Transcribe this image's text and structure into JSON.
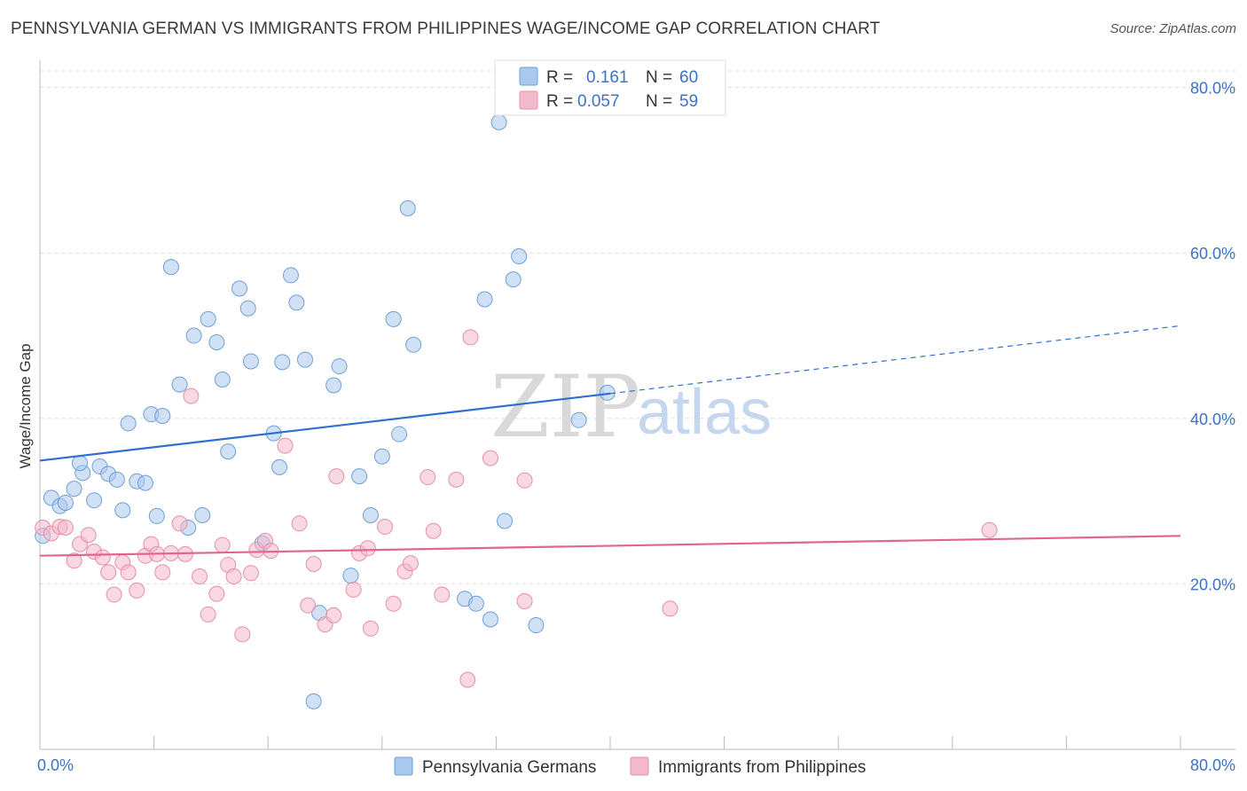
{
  "header": {
    "title": "PENNSYLVANIA GERMAN VS IMMIGRANTS FROM PHILIPPINES WAGE/INCOME GAP CORRELATION CHART",
    "source": "Source: ZipAtlas.com"
  },
  "watermark": {
    "zip": "ZIP",
    "atlas": "atlas"
  },
  "legend_top": [
    {
      "r_label": "R =",
      "r_value": "0.161",
      "n_label": "N =",
      "n_value": "60",
      "color": "#a9c8ee"
    },
    {
      "r_label": "R =",
      "r_value": "0.057",
      "n_label": "N =",
      "n_value": "59",
      "color": "#f4b8cb"
    }
  ],
  "chart_data": {
    "type": "scatter",
    "title": "PENNSYLVANIA GERMAN VS IMMIGRANTS FROM PHILIPPINES WAGE/INCOME GAP CORRELATION CHART",
    "xlabel": "",
    "ylabel": "Wage/Income Gap",
    "xlim": [
      0,
      80
    ],
    "ylim": [
      0,
      82
    ],
    "x_tick_labels": [
      "0.0%",
      "80.0%"
    ],
    "y_ticks": [
      20,
      40,
      60,
      80
    ],
    "y_tick_labels": [
      "20.0%",
      "40.0%",
      "60.0%",
      "80.0%"
    ],
    "grid": "horizontal dashed",
    "legend_placement": "top-center and bottom",
    "series": [
      {
        "name": "Pennsylvania Germans",
        "color": "#a9c8ee",
        "stroke": "#6f9fd8",
        "line_color": "#2f6fcf",
        "trend": {
          "x0": 0,
          "y0": 34.9,
          "x1": 40,
          "y1": 43.0,
          "x_end": 80,
          "y_end": 51.2
        },
        "points": [
          [
            0.2,
            25.8
          ],
          [
            0.8,
            30.4
          ],
          [
            1.4,
            29.4
          ],
          [
            1.8,
            29.8
          ],
          [
            2.4,
            31.5
          ],
          [
            3.0,
            33.4
          ],
          [
            2.8,
            34.6
          ],
          [
            3.8,
            30.1
          ],
          [
            4.2,
            34.2
          ],
          [
            4.8,
            33.3
          ],
          [
            5.4,
            32.6
          ],
          [
            5.8,
            28.9
          ],
          [
            6.2,
            39.4
          ],
          [
            6.8,
            32.4
          ],
          [
            7.4,
            32.2
          ],
          [
            7.8,
            40.5
          ],
          [
            8.2,
            28.2
          ],
          [
            8.6,
            40.3
          ],
          [
            9.2,
            58.3
          ],
          [
            9.8,
            44.1
          ],
          [
            10.4,
            26.8
          ],
          [
            10.8,
            50.0
          ],
          [
            11.4,
            28.3
          ],
          [
            11.8,
            52.0
          ],
          [
            12.4,
            49.2
          ],
          [
            12.8,
            44.7
          ],
          [
            13.2,
            36.0
          ],
          [
            14.0,
            55.7
          ],
          [
            14.6,
            53.3
          ],
          [
            14.8,
            46.9
          ],
          [
            15.6,
            24.9
          ],
          [
            16.4,
            38.2
          ],
          [
            16.8,
            34.1
          ],
          [
            17.0,
            46.8
          ],
          [
            17.6,
            57.3
          ],
          [
            18.0,
            54.0
          ],
          [
            18.6,
            47.1
          ],
          [
            19.6,
            16.5
          ],
          [
            19.2,
            5.8
          ],
          [
            20.6,
            44.0
          ],
          [
            21.0,
            46.3
          ],
          [
            21.8,
            21.0
          ],
          [
            22.4,
            33.0
          ],
          [
            23.2,
            28.3
          ],
          [
            24.0,
            35.4
          ],
          [
            24.8,
            52.0
          ],
          [
            25.2,
            38.1
          ],
          [
            25.8,
            65.4
          ],
          [
            26.2,
            48.9
          ],
          [
            29.8,
            18.2
          ],
          [
            30.6,
            17.6
          ],
          [
            31.2,
            54.4
          ],
          [
            31.6,
            15.7
          ],
          [
            32.2,
            75.8
          ],
          [
            32.6,
            27.6
          ],
          [
            33.2,
            56.8
          ],
          [
            33.6,
            59.6
          ],
          [
            34.8,
            15.0
          ],
          [
            37.8,
            39.8
          ],
          [
            39.8,
            43.1
          ]
        ]
      },
      {
        "name": "Immigrants from Philippines",
        "color": "#f4b8cb",
        "stroke": "#e58fab",
        "line_color": "#e06690",
        "trend": {
          "x0": 0,
          "y0": 23.4,
          "x1": 80,
          "y1": 25.8
        },
        "points": [
          [
            0.2,
            26.8
          ],
          [
            0.8,
            26.1
          ],
          [
            1.4,
            26.9
          ],
          [
            1.8,
            26.8
          ],
          [
            2.4,
            22.8
          ],
          [
            2.8,
            24.8
          ],
          [
            3.4,
            25.9
          ],
          [
            3.8,
            23.9
          ],
          [
            4.4,
            23.2
          ],
          [
            4.8,
            21.4
          ],
          [
            5.2,
            18.7
          ],
          [
            5.8,
            22.6
          ],
          [
            6.2,
            21.4
          ],
          [
            6.8,
            19.2
          ],
          [
            7.4,
            23.4
          ],
          [
            7.8,
            24.8
          ],
          [
            8.2,
            23.6
          ],
          [
            8.6,
            21.4
          ],
          [
            9.2,
            23.7
          ],
          [
            9.8,
            27.3
          ],
          [
            10.2,
            23.6
          ],
          [
            10.6,
            42.7
          ],
          [
            11.2,
            20.9
          ],
          [
            11.8,
            16.3
          ],
          [
            12.4,
            18.8
          ],
          [
            12.8,
            24.7
          ],
          [
            13.2,
            22.3
          ],
          [
            13.6,
            20.9
          ],
          [
            14.2,
            13.9
          ],
          [
            14.8,
            21.3
          ],
          [
            15.2,
            24.1
          ],
          [
            15.8,
            25.2
          ],
          [
            16.2,
            24.0
          ],
          [
            17.2,
            36.7
          ],
          [
            18.2,
            27.3
          ],
          [
            18.8,
            17.4
          ],
          [
            19.2,
            22.4
          ],
          [
            20.0,
            15.1
          ],
          [
            20.6,
            16.2
          ],
          [
            20.8,
            33.0
          ],
          [
            22.0,
            19.3
          ],
          [
            22.4,
            23.7
          ],
          [
            23.0,
            24.3
          ],
          [
            23.2,
            14.6
          ],
          [
            24.2,
            26.9
          ],
          [
            24.8,
            17.6
          ],
          [
            25.6,
            21.5
          ],
          [
            26.0,
            22.5
          ],
          [
            27.2,
            32.9
          ],
          [
            27.6,
            26.4
          ],
          [
            28.2,
            18.7
          ],
          [
            29.2,
            32.6
          ],
          [
            30.2,
            49.8
          ],
          [
            30.0,
            8.4
          ],
          [
            31.6,
            35.2
          ],
          [
            34.0,
            32.5
          ],
          [
            34.0,
            17.9
          ],
          [
            44.2,
            17.0
          ],
          [
            66.6,
            26.5
          ]
        ]
      }
    ]
  },
  "legend_bottom": [
    {
      "label": "Pennsylvania Germans",
      "color": "#a9c8ee"
    },
    {
      "label": "Immigrants from Philippines",
      "color": "#f4b8cb"
    }
  ]
}
